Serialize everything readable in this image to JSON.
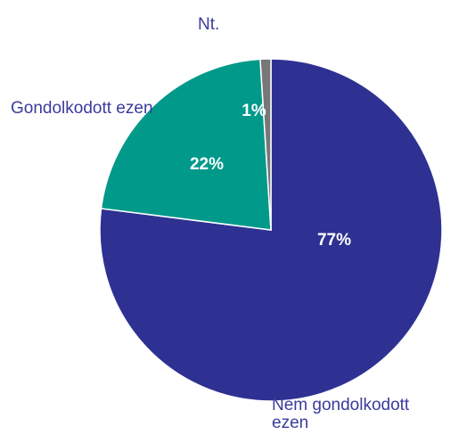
{
  "chart_data": {
    "type": "pie",
    "categories": [
      "Nem gondolkodott ezen",
      "Gondolkodott ezen",
      "Nt."
    ],
    "values": [
      77,
      22,
      1
    ],
    "value_labels": [
      "77%",
      "22%",
      "1%"
    ],
    "colors": [
      "#2e3192",
      "#00998a",
      "#777777"
    ]
  }
}
